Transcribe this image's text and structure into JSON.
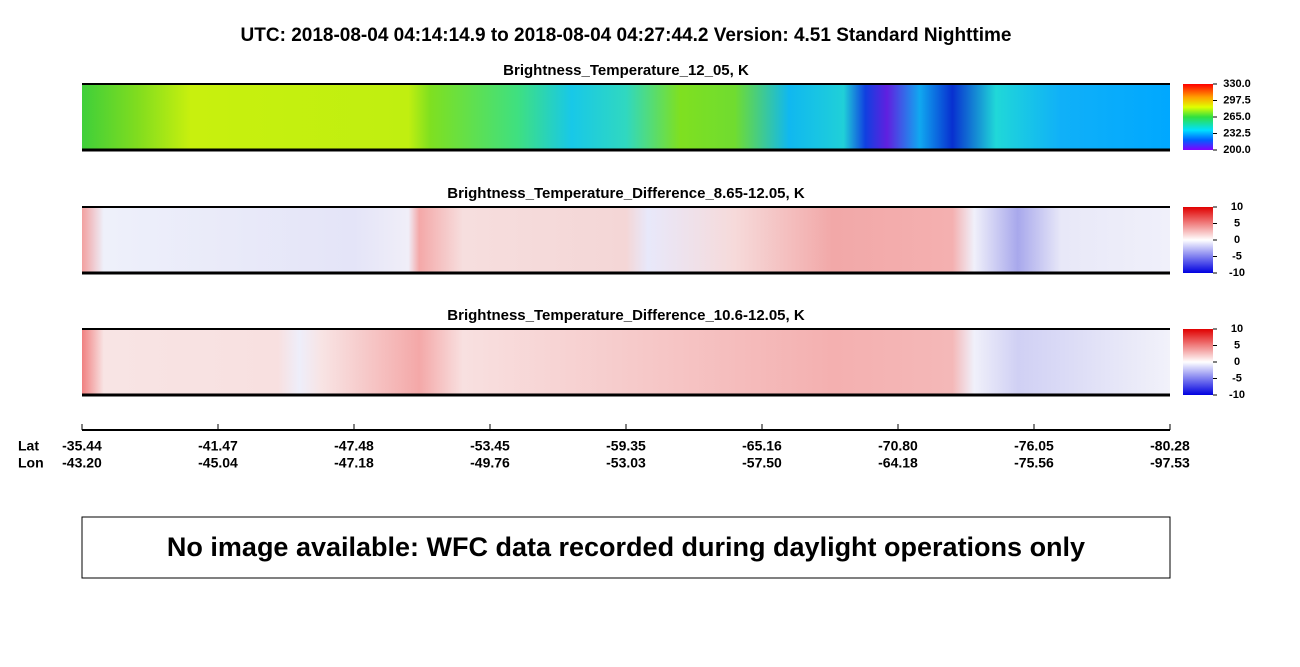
{
  "title": "UTC:  2018-08-04   04:14:14.9  to  2018-08-04   04:27:44.2    Version: 4.51  Standard Nighttime",
  "chart_data": [
    {
      "type": "heatmap",
      "title": "Brightness_Temperature_12_05, K",
      "colorscale": "rainbow",
      "clim": [
        200,
        330
      ],
      "cticks": [
        {
          "value": 330,
          "label": "330.0"
        },
        297.5,
        {
          "value": 265,
          "label": "265.0"
        },
        232.5,
        {
          "value": 200,
          "label": "200.0"
        }
      ]
    },
    {
      "type": "heatmap",
      "title": "Brightness_Temperature_Difference_8.65-12.05, K",
      "colorscale": "diverging",
      "clim": [
        -10,
        10
      ],
      "cticks": [
        10,
        5,
        0,
        -5,
        -10
      ]
    },
    {
      "type": "heatmap",
      "title": "Brightness_Temperature_Difference_10.6-12.05, K",
      "colorscale": "diverging",
      "clim": [
        -10,
        10
      ],
      "cticks": [
        10,
        5,
        0,
        -5,
        -10
      ]
    }
  ],
  "along_track": {
    "lat_label": "Lat",
    "lon_label": "Lon",
    "lat": [
      -35.44,
      -41.47,
      -47.48,
      -53.45,
      -59.35,
      -65.16,
      {
        "value": -70.8,
        "label": "-70.80"
      },
      -76.05,
      -80.28
    ],
    "lon": [
      {
        "value": -43.2,
        "label": "-43.20"
      },
      -45.04,
      -47.18,
      -49.76,
      -53.03,
      {
        "value": -57.5,
        "label": "-57.50"
      },
      -64.18,
      -75.56,
      -97.53
    ]
  },
  "notice": "No image available: WFC data recorded during daylight operations only"
}
